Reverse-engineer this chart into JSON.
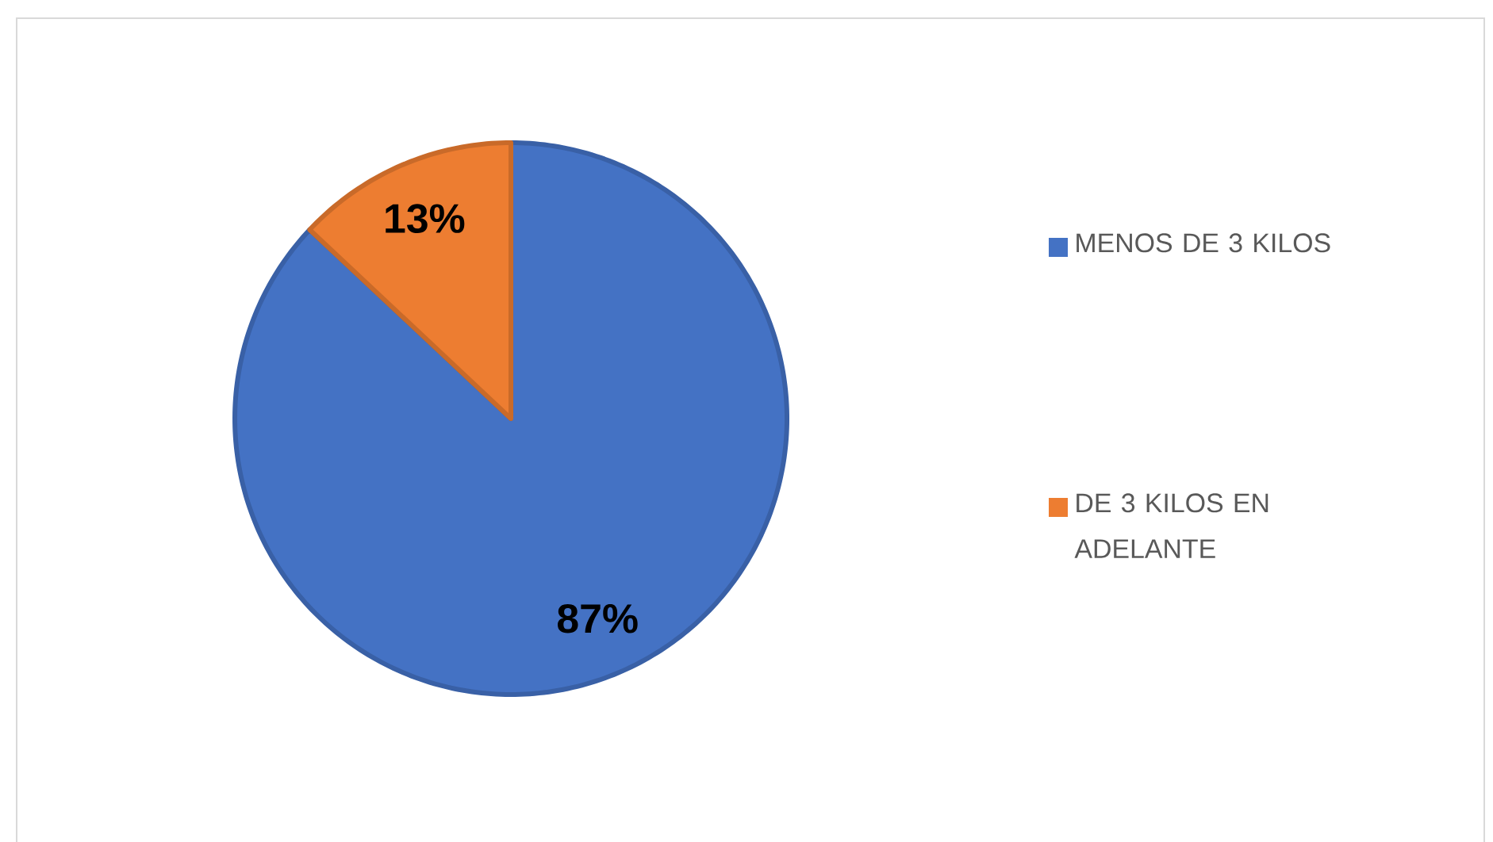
{
  "chart_data": {
    "type": "pie",
    "categories": [
      "MENOS DE 3 KILOS",
      "DE 3 KILOS EN ADELANTE"
    ],
    "values": [
      87,
      13
    ],
    "colors": [
      "#4472c4",
      "#ed7d31"
    ],
    "value_labels": [
      "87%",
      "13%"
    ],
    "legend": "right"
  }
}
